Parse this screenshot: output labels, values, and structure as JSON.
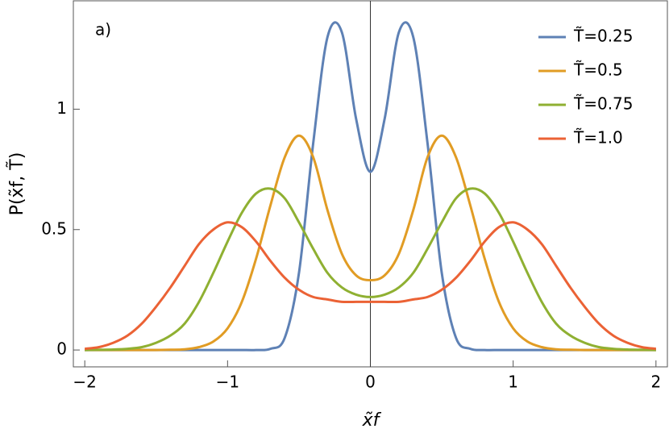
{
  "chart_data": {
    "type": "line",
    "annotation": "a)",
    "x_label": "x̃f",
    "y_label": "P(x̃f, T̃)",
    "x": [
      -2.0,
      -1.9,
      -1.8,
      -1.7,
      -1.6,
      -1.5,
      -1.4,
      -1.3,
      -1.2,
      -1.1,
      -1.0,
      -0.9,
      -0.8,
      -0.7,
      -0.6,
      -0.5,
      -0.4,
      -0.3,
      -0.2,
      -0.1,
      0.0,
      0.1,
      0.2,
      0.3,
      0.4,
      0.5,
      0.6,
      0.7,
      0.8,
      0.9,
      1.0,
      1.1,
      1.2,
      1.3,
      1.4,
      1.5,
      1.6,
      1.7,
      1.8,
      1.9,
      2.0
    ],
    "series": [
      {
        "name": "T̃=0.25",
        "color": "#5e81b5",
        "values": [
          0,
          0,
          0,
          0,
          0,
          0,
          0,
          0,
          0,
          0,
          0,
          0,
          0,
          0.005,
          0.05,
          0.32,
          0.86,
          1.3,
          1.32,
          0.96,
          0.74,
          0.96,
          1.32,
          1.3,
          0.86,
          0.32,
          0.05,
          0.005,
          0,
          0,
          0,
          0,
          0,
          0,
          0,
          0,
          0,
          0,
          0,
          0,
          0
        ]
      },
      {
        "name": "T̃=0.5",
        "color": "#e19c24",
        "values": [
          0,
          0,
          0,
          0,
          0,
          0,
          0.001,
          0.003,
          0.012,
          0.035,
          0.09,
          0.2,
          0.38,
          0.6,
          0.8,
          0.89,
          0.8,
          0.58,
          0.4,
          0.31,
          0.29,
          0.31,
          0.4,
          0.58,
          0.8,
          0.89,
          0.8,
          0.6,
          0.38,
          0.2,
          0.09,
          0.035,
          0.012,
          0.003,
          0.001,
          0,
          0,
          0,
          0,
          0,
          0
        ]
      },
      {
        "name": "T̃=0.75",
        "color": "#8fb032",
        "values": [
          0,
          0.001,
          0.002,
          0.005,
          0.012,
          0.03,
          0.06,
          0.11,
          0.2,
          0.32,
          0.45,
          0.57,
          0.65,
          0.67,
          0.63,
          0.53,
          0.42,
          0.32,
          0.26,
          0.23,
          0.22,
          0.23,
          0.26,
          0.32,
          0.42,
          0.53,
          0.63,
          0.67,
          0.65,
          0.57,
          0.45,
          0.32,
          0.2,
          0.11,
          0.06,
          0.03,
          0.012,
          0.005,
          0.002,
          0.001,
          0
        ]
      },
      {
        "name": "T̃=1.0",
        "color": "#eb6235",
        "values": [
          0.005,
          0.012,
          0.03,
          0.06,
          0.11,
          0.18,
          0.26,
          0.35,
          0.44,
          0.5,
          0.53,
          0.51,
          0.45,
          0.37,
          0.3,
          0.25,
          0.22,
          0.21,
          0.2,
          0.2,
          0.2,
          0.2,
          0.2,
          0.21,
          0.22,
          0.25,
          0.3,
          0.37,
          0.45,
          0.51,
          0.53,
          0.5,
          0.44,
          0.35,
          0.26,
          0.18,
          0.11,
          0.06,
          0.03,
          0.012,
          0.005
        ]
      }
    ],
    "xlim": [
      -2.08,
      2.08
    ],
    "ylim": [
      -0.07,
      1.45
    ],
    "xticks": [
      {
        "value": -2,
        "label": "−2"
      },
      {
        "value": -1,
        "label": "−1"
      },
      0,
      1,
      2
    ],
    "yticks": [
      0,
      0.5,
      1
    ],
    "legend": "upper right",
    "grid": false
  }
}
